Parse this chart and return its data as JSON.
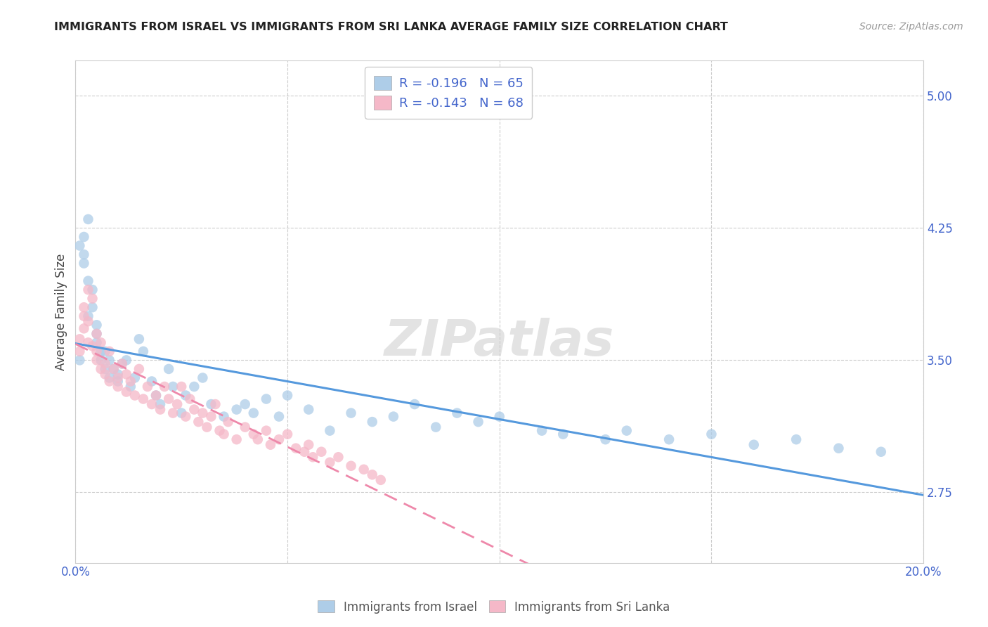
{
  "title": "IMMIGRANTS FROM ISRAEL VS IMMIGRANTS FROM SRI LANKA AVERAGE FAMILY SIZE CORRELATION CHART",
  "source": "Source: ZipAtlas.com",
  "ylabel": "Average Family Size",
  "xlim": [
    0.0,
    0.2
  ],
  "ylim": [
    2.35,
    5.2
  ],
  "yticks": [
    2.75,
    3.5,
    4.25,
    5.0
  ],
  "xticks": [
    0.0,
    0.05,
    0.1,
    0.15,
    0.2
  ],
  "legend1_R": -0.196,
  "legend1_N": 65,
  "legend2_R": -0.143,
  "legend2_N": 68,
  "color_israel": "#aecde8",
  "color_srilanka": "#f5b8c8",
  "color_blue_text": "#4466cc",
  "color_line_israel": "#5599dd",
  "color_line_srilanka": "#ee88aa",
  "watermark": "ZIPatlas",
  "israel_x": [
    0.001,
    0.001,
    0.002,
    0.002,
    0.002,
    0.003,
    0.003,
    0.003,
    0.004,
    0.004,
    0.005,
    0.005,
    0.005,
    0.006,
    0.006,
    0.007,
    0.007,
    0.008,
    0.008,
    0.009,
    0.01,
    0.01,
    0.011,
    0.012,
    0.013,
    0.014,
    0.015,
    0.016,
    0.018,
    0.019,
    0.02,
    0.022,
    0.023,
    0.025,
    0.026,
    0.028,
    0.03,
    0.032,
    0.035,
    0.038,
    0.04,
    0.042,
    0.045,
    0.048,
    0.05,
    0.055,
    0.06,
    0.065,
    0.07,
    0.075,
    0.08,
    0.085,
    0.09,
    0.095,
    0.1,
    0.11,
    0.115,
    0.125,
    0.13,
    0.14,
    0.15,
    0.16,
    0.17,
    0.18,
    0.19
  ],
  "israel_y": [
    3.5,
    4.15,
    4.2,
    4.1,
    4.05,
    3.95,
    4.3,
    3.75,
    3.9,
    3.8,
    3.7,
    3.65,
    3.6,
    3.55,
    3.5,
    3.45,
    3.55,
    3.4,
    3.5,
    3.45,
    3.42,
    3.38,
    3.48,
    3.5,
    3.35,
    3.4,
    3.62,
    3.55,
    3.38,
    3.3,
    3.25,
    3.45,
    3.35,
    3.2,
    3.3,
    3.35,
    3.4,
    3.25,
    3.18,
    3.22,
    3.25,
    3.2,
    3.28,
    3.18,
    3.3,
    3.22,
    3.1,
    3.2,
    3.15,
    3.18,
    3.25,
    3.12,
    3.2,
    3.15,
    3.18,
    3.1,
    3.08,
    3.05,
    3.1,
    3.05,
    3.08,
    3.02,
    3.05,
    3.0,
    2.98
  ],
  "srilanka_x": [
    0.001,
    0.001,
    0.002,
    0.002,
    0.002,
    0.003,
    0.003,
    0.003,
    0.004,
    0.004,
    0.005,
    0.005,
    0.005,
    0.006,
    0.006,
    0.007,
    0.007,
    0.008,
    0.008,
    0.009,
    0.01,
    0.01,
    0.011,
    0.012,
    0.012,
    0.013,
    0.014,
    0.015,
    0.016,
    0.017,
    0.018,
    0.019,
    0.02,
    0.021,
    0.022,
    0.023,
    0.024,
    0.025,
    0.026,
    0.027,
    0.028,
    0.029,
    0.03,
    0.031,
    0.032,
    0.033,
    0.034,
    0.035,
    0.036,
    0.038,
    0.04,
    0.042,
    0.043,
    0.045,
    0.046,
    0.048,
    0.05,
    0.052,
    0.054,
    0.055,
    0.056,
    0.058,
    0.06,
    0.062,
    0.065,
    0.068,
    0.07,
    0.072
  ],
  "srilanka_y": [
    3.62,
    3.55,
    3.75,
    3.68,
    3.8,
    3.9,
    3.72,
    3.6,
    3.85,
    3.58,
    3.65,
    3.55,
    3.5,
    3.45,
    3.6,
    3.48,
    3.42,
    3.55,
    3.38,
    3.45,
    3.4,
    3.35,
    3.48,
    3.32,
    3.42,
    3.38,
    3.3,
    3.45,
    3.28,
    3.35,
    3.25,
    3.3,
    3.22,
    3.35,
    3.28,
    3.2,
    3.25,
    3.35,
    3.18,
    3.28,
    3.22,
    3.15,
    3.2,
    3.12,
    3.18,
    3.25,
    3.1,
    3.08,
    3.15,
    3.05,
    3.12,
    3.08,
    3.05,
    3.1,
    3.02,
    3.05,
    3.08,
    3.0,
    2.98,
    3.02,
    2.95,
    2.98,
    2.92,
    2.95,
    2.9,
    2.88,
    2.85,
    2.82
  ]
}
